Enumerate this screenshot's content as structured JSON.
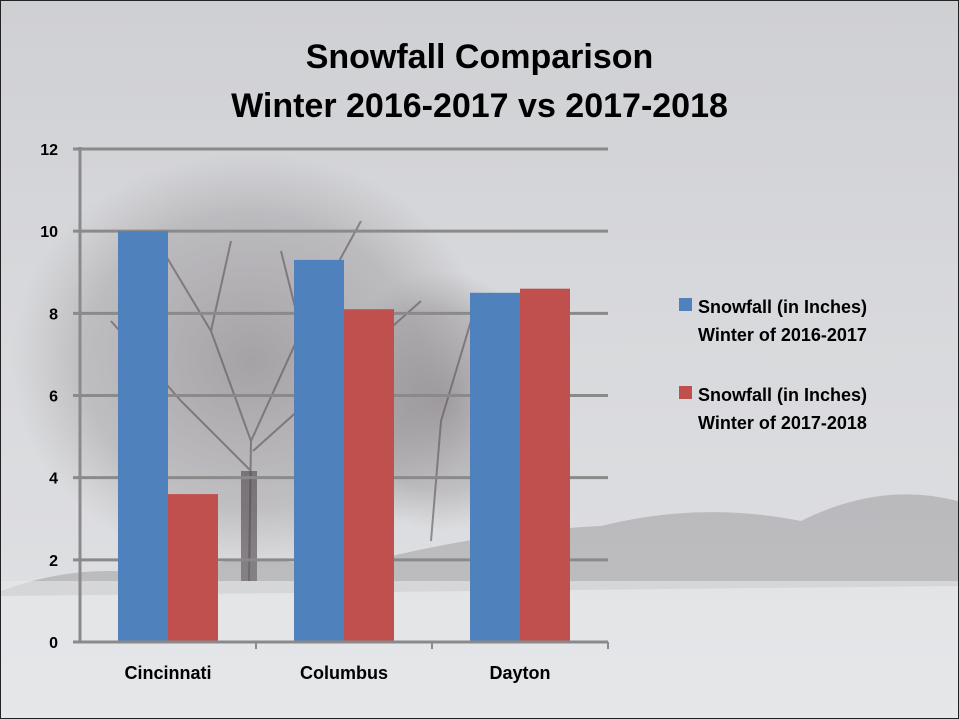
{
  "colors": {
    "series1": "#4f81bd",
    "series2": "#c0504d",
    "gridline": "#8a8a8a",
    "background": "#d6d7da"
  },
  "background_image": "snowy-field-with-bare-tree-photo",
  "chart_data": {
    "type": "bar",
    "title": "Snowfall Comparison",
    "subtitle": "Winter 2016-2017 vs 2017-2018",
    "categories": [
      "Cincinnati",
      "Columbus",
      "Dayton"
    ],
    "series": [
      {
        "name": "Snowfall (in Inches) Winter of 2016-2017",
        "name_line1": "Snowfall (in Inches)",
        "name_line2": "Winter of 2016-2017",
        "values": [
          10.0,
          9.3,
          8.5
        ]
      },
      {
        "name": "Snowfall (in Inches) Winter of 2017-2018",
        "name_line1": "Snowfall (in Inches)",
        "name_line2": "Winter of 2017-2018",
        "values": [
          3.6,
          8.1,
          8.6
        ]
      }
    ],
    "ylim": [
      0,
      12
    ],
    "yticks": [
      "0",
      "2",
      "4",
      "6",
      "8",
      "10",
      "12"
    ],
    "xlabel": "",
    "ylabel": "",
    "grid": true,
    "legend_position": "right"
  }
}
